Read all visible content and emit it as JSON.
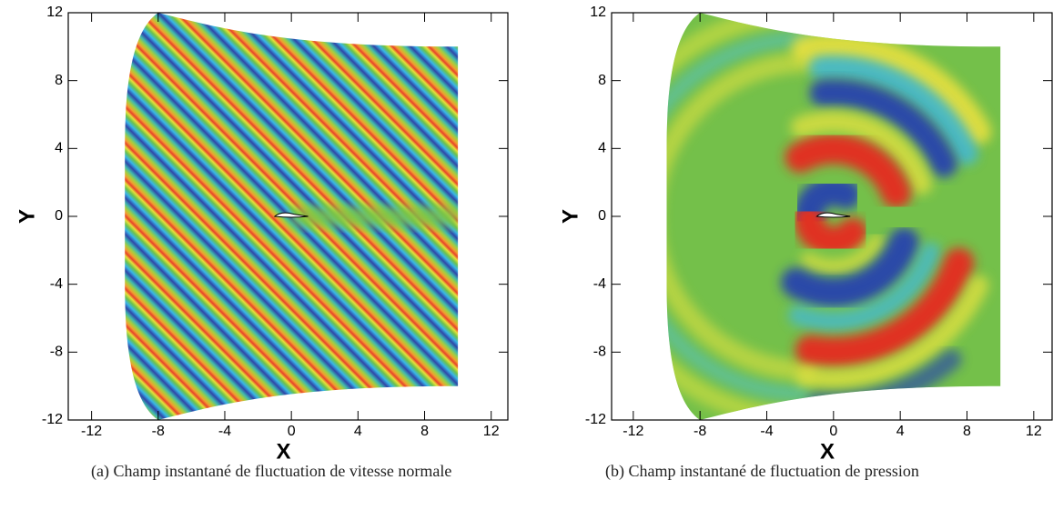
{
  "chart_data": [
    {
      "type": "contour",
      "xlabel": "X",
      "ylabel": "Y",
      "xlim": [
        -13.4,
        13
      ],
      "ylim": [
        -12,
        12
      ],
      "xticks": [
        -12,
        -8,
        -4,
        0,
        4,
        8,
        12
      ],
      "yticks": [
        -12,
        -8,
        -4,
        0,
        4,
        8,
        12
      ],
      "caption": "(a) Champ instantané de fluctuation de vitesse normale"
    },
    {
      "type": "contour",
      "xlabel": "X",
      "ylabel": "Y",
      "xlim": [
        -13.3,
        13.1
      ],
      "ylim": [
        -12,
        12
      ],
      "xticks": [
        -12,
        -8,
        -4,
        0,
        4,
        8,
        12
      ],
      "yticks": [
        -12,
        -8,
        -4,
        0,
        4,
        8,
        12
      ],
      "caption": "(b) Champ instantané de fluctuation de pression"
    }
  ]
}
